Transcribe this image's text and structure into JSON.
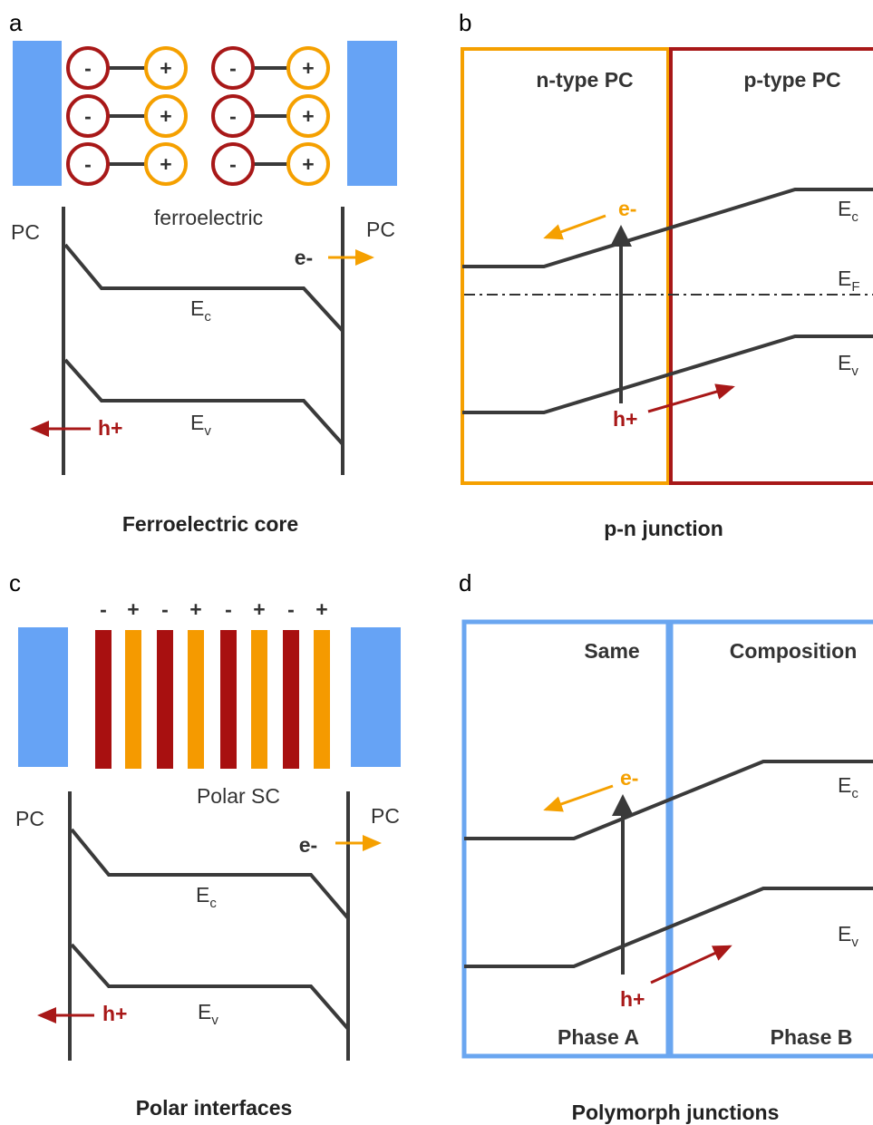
{
  "panel_a": {
    "letter": "a",
    "dipoles": [
      {
        "minus": "-",
        "plus": "+"
      },
      {
        "minus": "-",
        "plus": "+"
      },
      {
        "minus": "-",
        "plus": "+"
      },
      {
        "minus": "-",
        "plus": "+"
      },
      {
        "minus": "-",
        "plus": "+"
      },
      {
        "minus": "-",
        "plus": "+"
      }
    ],
    "material": "ferroelectric",
    "left_electrode": "PC",
    "right_electrode": "PC",
    "electron": "e-",
    "conduction_band": {
      "main": "E",
      "sub": "c"
    },
    "valence_band": {
      "main": "E",
      "sub": "v"
    },
    "hole": "h+",
    "caption": "Ferroelectric core"
  },
  "panel_b": {
    "letter": "b",
    "left_region": "n-type PC",
    "right_region": "p-type PC",
    "electron": "e-",
    "conduction_band": {
      "main": "E",
      "sub": "c"
    },
    "fermi_level": {
      "main": "E",
      "sub": "F"
    },
    "valence_band": {
      "main": "E",
      "sub": "v"
    },
    "hole": "h+",
    "caption": "p-n junction"
  },
  "panel_c": {
    "letter": "c",
    "charges": [
      "-",
      "+",
      "-",
      "+",
      "-",
      "+",
      "-",
      "+"
    ],
    "material": "Polar SC",
    "left_electrode": "PC",
    "right_electrode": "PC",
    "electron": "e-",
    "conduction_band": {
      "main": "E",
      "sub": "c"
    },
    "valence_band": {
      "main": "E",
      "sub": "v"
    },
    "hole": "h+",
    "caption": "Polar interfaces"
  },
  "panel_d": {
    "letter": "d",
    "left_top": "Same",
    "right_top": "Composition",
    "electron": "e-",
    "conduction_band": {
      "main": "E",
      "sub": "c"
    },
    "valence_band": {
      "main": "E",
      "sub": "v"
    },
    "hole": "h+",
    "left_bottom": "Phase A",
    "right_bottom": "Phase B",
    "caption": "Polymorph junctions"
  }
}
